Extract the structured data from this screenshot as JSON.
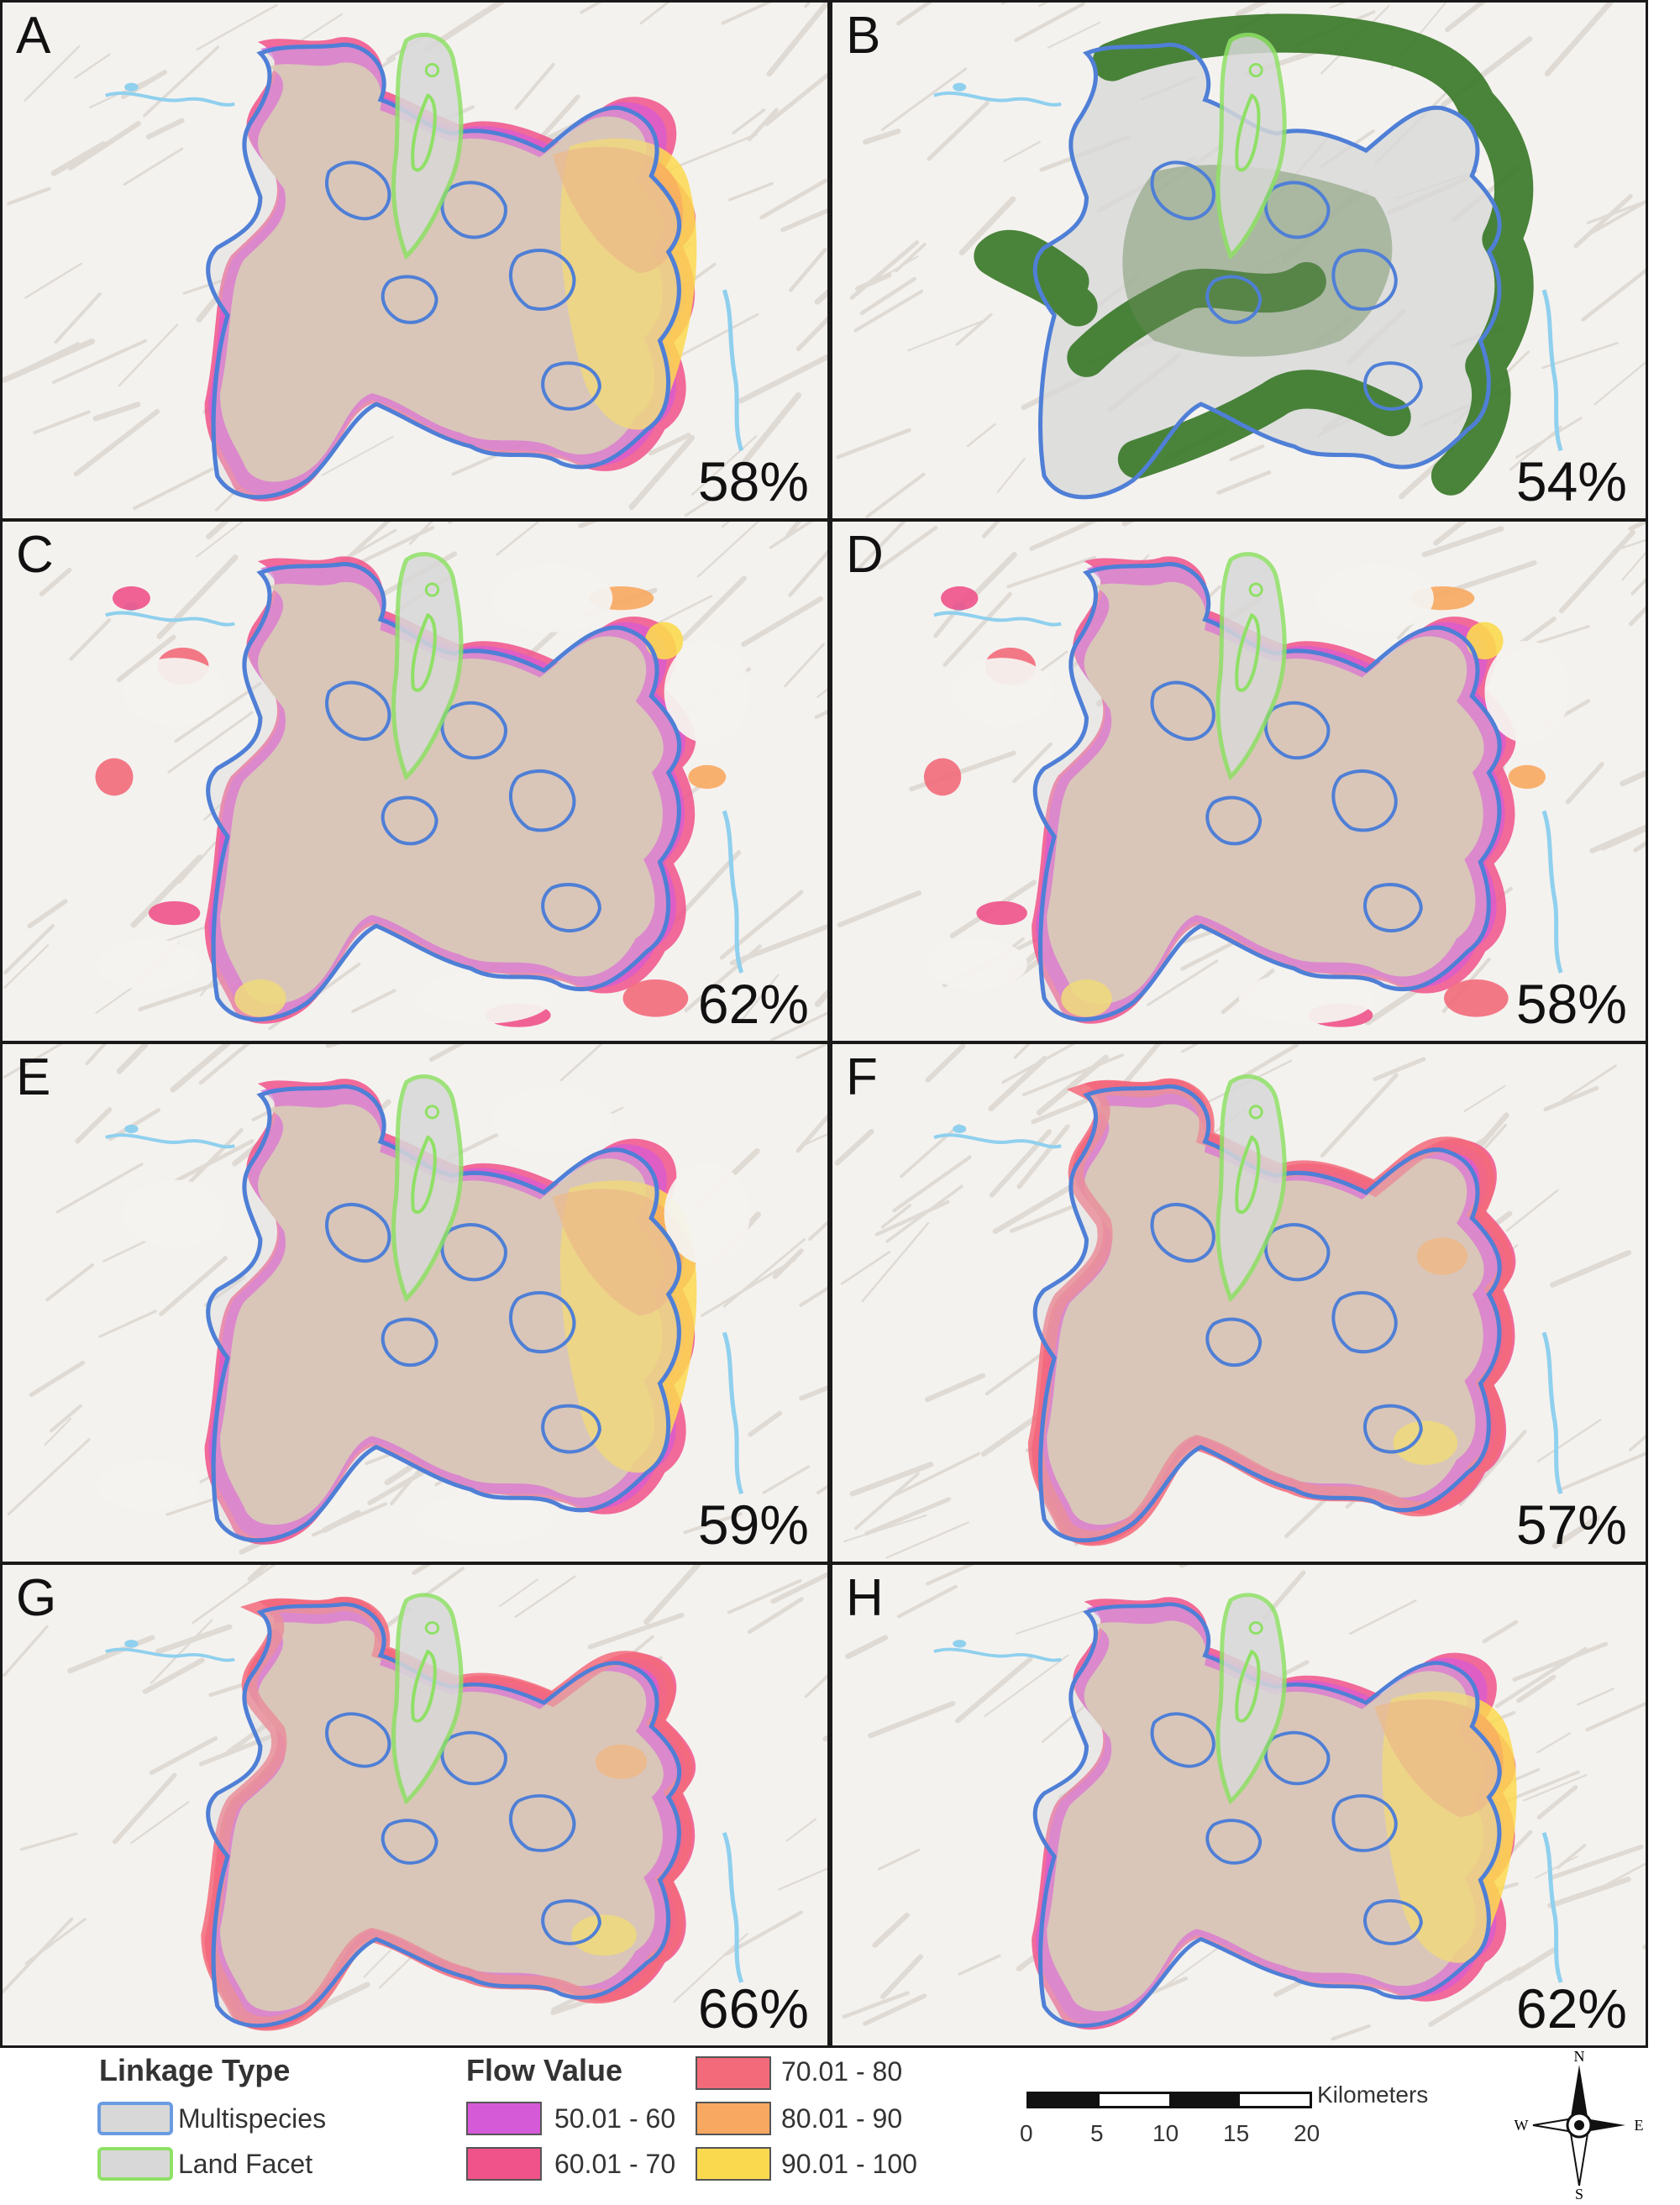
{
  "panels": [
    {
      "letter": "A",
      "percent": "58%",
      "style": "flow",
      "tint": "east"
    },
    {
      "letter": "B",
      "percent": "54%",
      "style": "green",
      "tint": "none"
    },
    {
      "letter": "C",
      "percent": "62%",
      "style": "patchy",
      "tint": "mixed"
    },
    {
      "letter": "D",
      "percent": "58%",
      "style": "patchy",
      "tint": "mixed"
    },
    {
      "letter": "E",
      "percent": "59%",
      "style": "patchy",
      "tint": "east"
    },
    {
      "letter": "F",
      "percent": "57%",
      "style": "flow",
      "tint": "rim"
    },
    {
      "letter": "G",
      "percent": "66%",
      "style": "flow",
      "tint": "rim"
    },
    {
      "letter": "H",
      "percent": "62%",
      "style": "flow",
      "tint": "east"
    }
  ],
  "legend": {
    "linkage_title": "Linkage Type",
    "linkage_items": [
      {
        "label": "Multispecies",
        "fill": "#d8d8d8",
        "border": "#6a9be0"
      },
      {
        "label": "Land Facet",
        "fill": "#d8d8d8",
        "border": "#8fe066"
      }
    ],
    "flow_title": "Flow Value",
    "flow_items": [
      {
        "label": "50.01 - 60",
        "color": "#d55ad8"
      },
      {
        "label": "60.01 - 70",
        "color": "#f0528a"
      },
      {
        "label": "70.01 - 80",
        "color": "#f36a7a"
      },
      {
        "label": "80.01 - 90",
        "color": "#f8a860"
      },
      {
        "label": "90.01 - 100",
        "color": "#fbd94f"
      }
    ]
  },
  "scale_bar": {
    "unit": "Kilometers",
    "ticks": [
      "0",
      "5",
      "10",
      "15",
      "20"
    ]
  },
  "compass": {
    "n": "N",
    "s": "S",
    "e": "E",
    "w": "W"
  },
  "colors": {
    "corridor_fill": "#d9c9a6",
    "multispecies_line": "#4f7fd6",
    "land_facet_line": "#8fe066",
    "green_flow": "#3b7a2a",
    "water": "#8fd0ee"
  }
}
